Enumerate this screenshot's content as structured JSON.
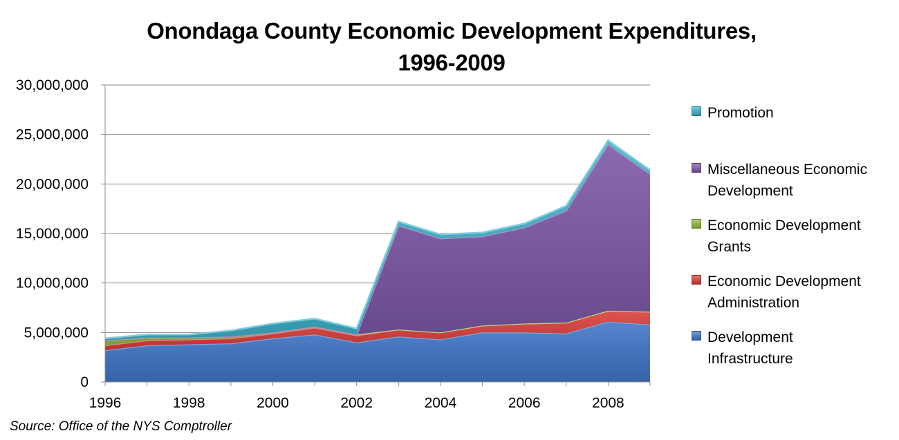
{
  "chart_data": {
    "type": "area",
    "stacked": true,
    "title_line1": "Onondaga County Economic Development Expenditures,",
    "title_line2": "1996-2009",
    "xlabel": "",
    "ylabel": "",
    "x": [
      1996,
      1997,
      1998,
      1999,
      2000,
      2001,
      2002,
      2003,
      2004,
      2005,
      2006,
      2007,
      2008,
      2009
    ],
    "xlim": [
      1996,
      2009
    ],
    "ylim": [
      0,
      30000000
    ],
    "x_ticks": [
      "1996",
      "1998",
      "2000",
      "2002",
      "2004",
      "2006",
      "2008"
    ],
    "y_ticks": [
      "30,000,000",
      "25,000,000",
      "20,000,000",
      "15,000,000",
      "10,000,000",
      "5,000,000",
      "0"
    ],
    "grid": "horizontal",
    "legend_position": "right",
    "series": [
      {
        "name": "Development Infrastructure",
        "color": "#3f74c7",
        "values": [
          3200000,
          3700000,
          3800000,
          3900000,
          4400000,
          4800000,
          4000000,
          4600000,
          4300000,
          5000000,
          5000000,
          4900000,
          6100000,
          5800000
        ]
      },
      {
        "name": "Economic Development Administration",
        "color": "#d93d3a",
        "values": [
          500000,
          500000,
          500000,
          500000,
          500000,
          700000,
          700000,
          700000,
          700000,
          700000,
          900000,
          1100000,
          1100000,
          1300000
        ]
      },
      {
        "name": "Economic Development Grants",
        "color": "#8fb93f",
        "values": [
          500000,
          300000,
          200000,
          200000,
          100000,
          100000,
          100000,
          0,
          0,
          0,
          0,
          0,
          0,
          0
        ]
      },
      {
        "name": "Miscellaneous Economic Development",
        "color": "#7b56a6",
        "values": [
          0,
          0,
          0,
          0,
          0,
          0,
          0,
          10500000,
          9500000,
          9000000,
          9700000,
          11300000,
          16800000,
          13900000
        ]
      },
      {
        "name": "Promotion",
        "color": "#3fb1c9",
        "values": [
          200000,
          300000,
          300000,
          600000,
          900000,
          800000,
          600000,
          400000,
          400000,
          400000,
          400000,
          500000,
          400000,
          400000
        ]
      }
    ]
  },
  "legend_order": [
    4,
    3,
    2,
    1,
    0
  ],
  "legend_labels": [
    [
      "Promotion"
    ],
    [
      "Miscellaneous Economic",
      "Development"
    ],
    [
      "Economic Development",
      "Grants"
    ],
    [
      "Economic Development",
      "Administration"
    ],
    [
      "Development",
      "Infrastructure"
    ]
  ],
  "source": "Source:  Office of the NYS Comptroller"
}
